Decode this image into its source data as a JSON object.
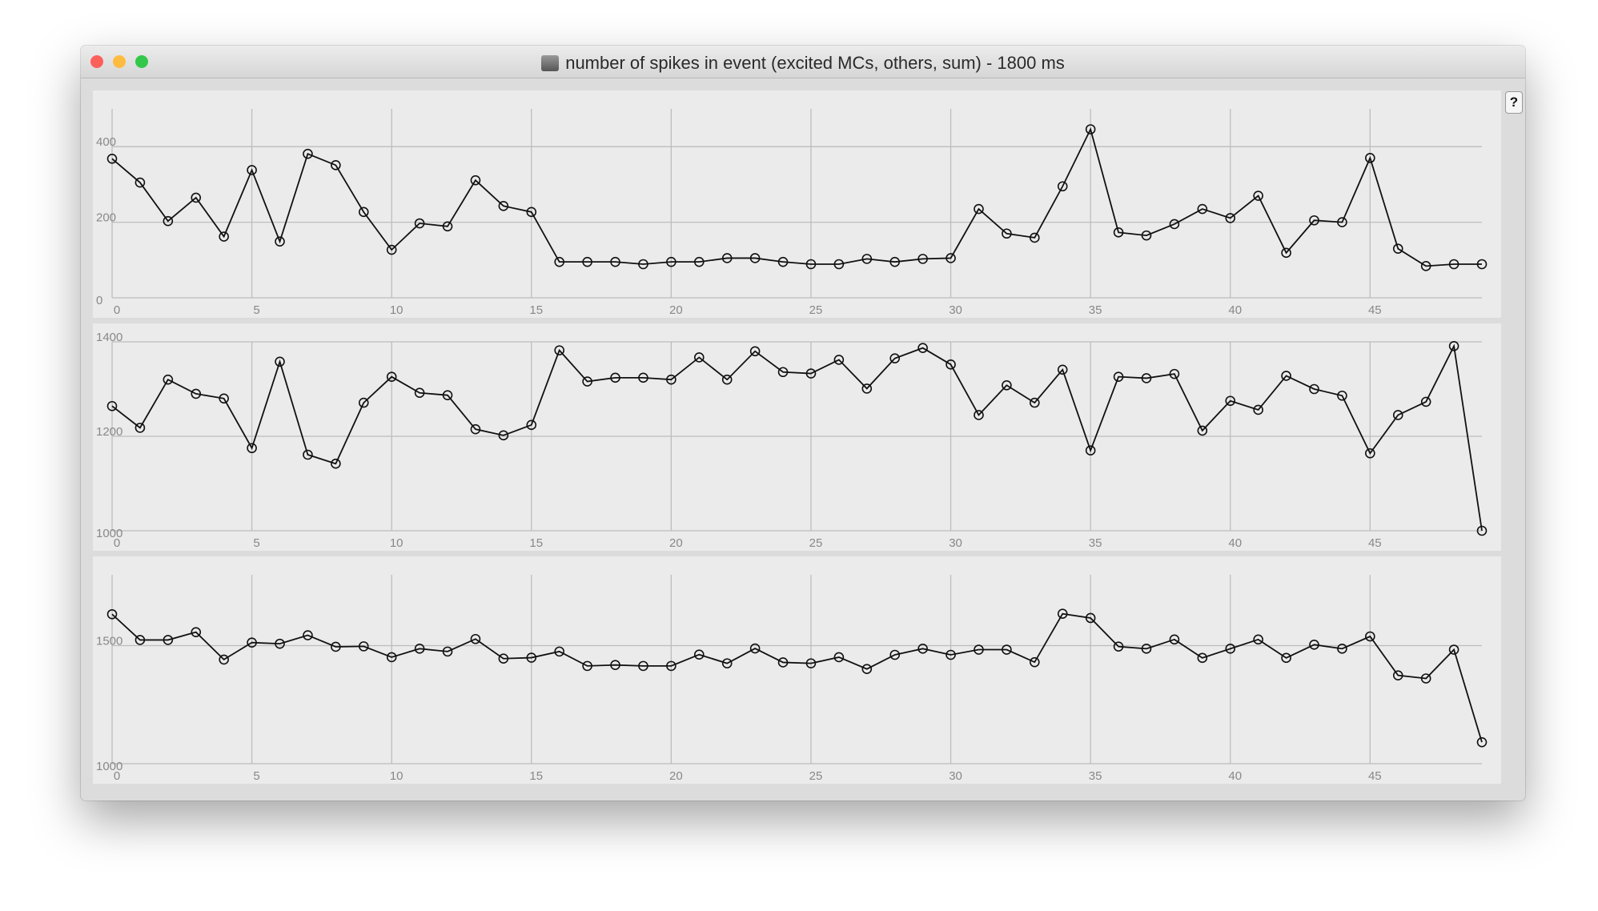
{
  "window": {
    "title": "number of spikes in event (excited MCs, others, sum) - 1800 ms",
    "help_label": "?",
    "traffic_lights": {
      "close": "#fc605b",
      "minimize": "#fdbc40",
      "zoom": "#34c84a"
    }
  },
  "chart_data": [
    {
      "type": "line",
      "x_ticks": [
        "0",
        "5",
        "10",
        "15",
        "20",
        "25",
        "30",
        "35",
        "40",
        "45"
      ],
      "y_ticks": [
        "0",
        "200",
        "400"
      ],
      "ylim": [
        0,
        500
      ],
      "xlim": [
        0,
        49
      ],
      "grid": true,
      "values": [
        368,
        305,
        203,
        265,
        162,
        338,
        149,
        381,
        351,
        227,
        127,
        197,
        189,
        311,
        243,
        227,
        95,
        95,
        95,
        89,
        95,
        95,
        105,
        105,
        95,
        89,
        89,
        103,
        95,
        103,
        105,
        235,
        170,
        159,
        295,
        446,
        173,
        165,
        195,
        235,
        211,
        270,
        119,
        205,
        200,
        370,
        130,
        84,
        89,
        89
      ]
    },
    {
      "type": "line",
      "x_ticks": [
        "0",
        "5",
        "10",
        "15",
        "20",
        "25",
        "30",
        "35",
        "40",
        "45"
      ],
      "y_ticks": [
        "1000",
        "1200",
        "1400"
      ],
      "ylim": [
        1000,
        1400
      ],
      "xlim": [
        0,
        49
      ],
      "grid": true,
      "values": [
        1264,
        1218,
        1320,
        1290,
        1280,
        1175,
        1358,
        1161,
        1142,
        1271,
        1326,
        1292,
        1287,
        1215,
        1202,
        1224,
        1382,
        1316,
        1324,
        1324,
        1320,
        1367,
        1320,
        1380,
        1336,
        1333,
        1362,
        1301,
        1365,
        1387,
        1352,
        1245,
        1308,
        1271,
        1341,
        1170,
        1326,
        1323,
        1332,
        1212,
        1275,
        1256,
        1328,
        1300,
        1286,
        1164,
        1245,
        1273,
        1391,
        1000
      ]
    },
    {
      "type": "line",
      "x_ticks": [
        "0",
        "5",
        "10",
        "15",
        "20",
        "25",
        "30",
        "35",
        "40",
        "45"
      ],
      "y_ticks": [
        "1000",
        "1500"
      ],
      "ylim": [
        1000,
        1800
      ],
      "xlim": [
        0,
        49
      ],
      "grid": true,
      "values": [
        1633,
        1524,
        1524,
        1557,
        1441,
        1513,
        1508,
        1544,
        1495,
        1497,
        1451,
        1487,
        1475,
        1528,
        1445,
        1449,
        1475,
        1414,
        1418,
        1414,
        1414,
        1462,
        1425,
        1488,
        1429,
        1425,
        1451,
        1401,
        1461,
        1487,
        1461,
        1483,
        1483,
        1430,
        1635,
        1617,
        1496,
        1487,
        1526,
        1448,
        1487,
        1526,
        1448,
        1504,
        1487,
        1539,
        1374,
        1361,
        1483,
        1091
      ]
    }
  ]
}
